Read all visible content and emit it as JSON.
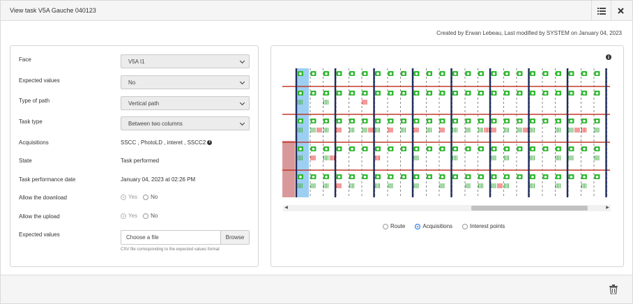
{
  "header": {
    "title": "View task V5A Gauche 040123",
    "list_icon": "list-icon",
    "close_icon": "close-icon"
  },
  "meta": "Created by Erwan Lebeau, Last modified by SYSTEM on January 04, 2023",
  "form": {
    "face": {
      "label": "Face",
      "value": "V5A I1"
    },
    "expected_values": {
      "label": "Expected values",
      "value": "No"
    },
    "type_of_path": {
      "label": "Type of path",
      "value": "Vertical path"
    },
    "task_type": {
      "label": "Task type",
      "value": "Between two columns"
    },
    "acquisitions": {
      "label": "Acquisitions",
      "value": "SSCC , PhotoLD , interet , SSCC2"
    },
    "state": {
      "label": "State",
      "value": "Task performed"
    },
    "performance_date": {
      "label": "Task performance date",
      "value": "January 04, 2023 at 02:26 PM"
    },
    "allow_download": {
      "label": "Allow the download",
      "yes": "Yes",
      "no": "No",
      "selected": "Yes"
    },
    "allow_upload": {
      "label": "Allow the upload",
      "yes": "Yes",
      "no": "No",
      "selected": "Yes"
    },
    "expected_file": {
      "label": "Expected values",
      "placeholder": "Choose a file",
      "browse": "Browse",
      "help": "CSV file corresponding to the expected values format"
    }
  },
  "viz": {
    "modes": [
      "Route",
      "Acquisitions",
      "Interest points"
    ],
    "selected_mode": "Acquisitions",
    "colors": {
      "camera": "#2eb82e",
      "barcode_ok": "#4caf50",
      "barcode_err": "#e53935",
      "beam": "#c0392b",
      "column": "#1f2d5c",
      "highlight": "#4aa8e8",
      "blocked": "#d9999b"
    }
  }
}
